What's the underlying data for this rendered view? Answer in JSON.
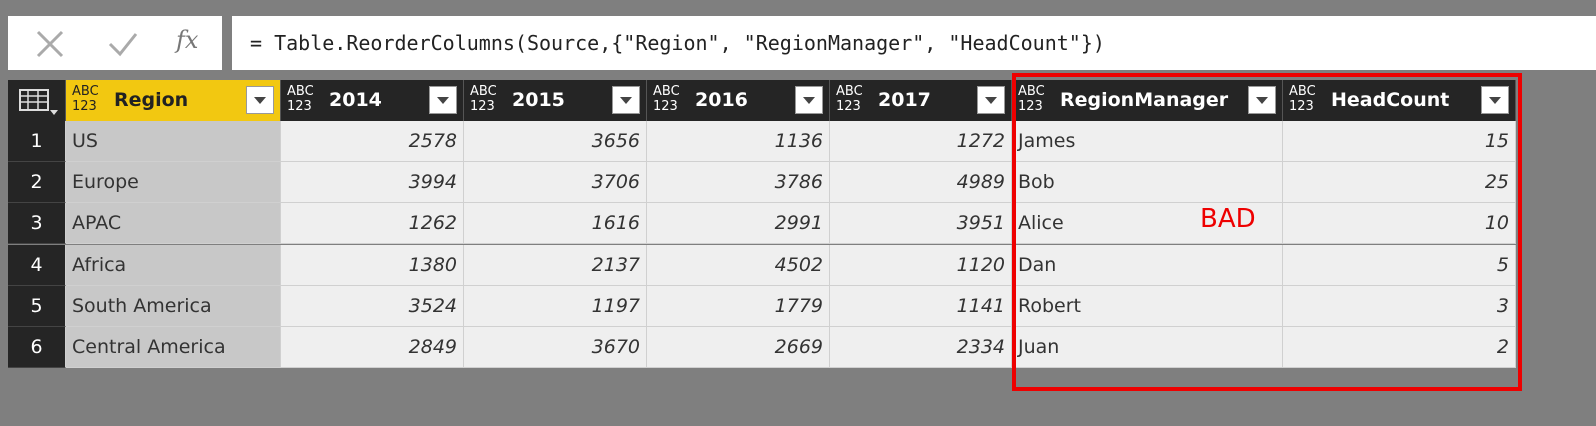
{
  "formula_bar": {
    "fx_label": "fx",
    "formula": "= Table.ReorderColumns(Source,{\"Region\", \"RegionManager\", \"HeadCount\"})"
  },
  "table": {
    "columns": [
      {
        "name": "Region",
        "type_icon": [
          "ABC",
          "123"
        ]
      },
      {
        "name": "2014",
        "type_icon": [
          "ABC",
          "123"
        ]
      },
      {
        "name": "2015",
        "type_icon": [
          "ABC",
          "123"
        ]
      },
      {
        "name": "2016",
        "type_icon": [
          "ABC",
          "123"
        ]
      },
      {
        "name": "2017",
        "type_icon": [
          "ABC",
          "123"
        ]
      },
      {
        "name": "RegionManager",
        "type_icon": [
          "ABC",
          "123"
        ]
      },
      {
        "name": "HeadCount",
        "type_icon": [
          "ABC",
          "123"
        ]
      }
    ],
    "rows": [
      [
        1,
        "US",
        2578,
        3656,
        1136,
        1272,
        "James",
        15
      ],
      [
        2,
        "Europe",
        3994,
        3706,
        3786,
        4989,
        "Bob",
        25
      ],
      [
        3,
        "APAC",
        1262,
        1616,
        2991,
        3951,
        "Alice",
        10
      ],
      [
        4,
        "Africa",
        1380,
        2137,
        4502,
        1120,
        "Dan",
        5
      ],
      [
        5,
        "South America",
        3524,
        1197,
        1779,
        1141,
        "Robert",
        3
      ],
      [
        6,
        "Central America",
        2849,
        3670,
        2669,
        2334,
        "Juan",
        2
      ]
    ]
  },
  "annotation": {
    "text": "BAD"
  }
}
